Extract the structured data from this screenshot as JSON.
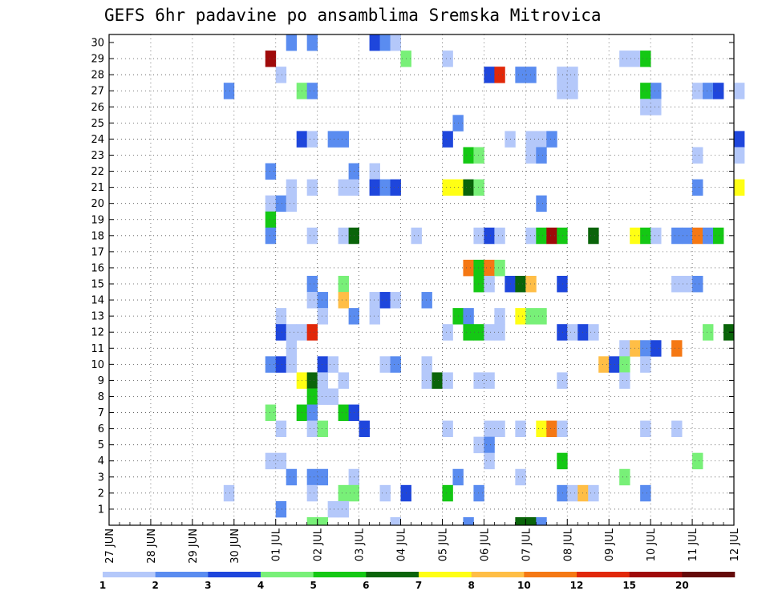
{
  "chart_data": {
    "type": "heatmap",
    "title": "GEFS 6hr padavine po ansamblima Sremska Mitrovica",
    "x_tick_labels": [
      "27 JUN",
      "28 JUN",
      "29 JUN",
      "30 JUN",
      "01 JUL",
      "02 JUL",
      "03 JUL",
      "04 JUL",
      "05 JUL",
      "06 JUL",
      "07 JUL",
      "08 JUL",
      "09 JUL",
      "10 JUL",
      "11 JUL",
      "12 JUL"
    ],
    "y_tick_labels": [
      "1",
      "2",
      "3",
      "4",
      "5",
      "6",
      "7",
      "8",
      "9",
      "10",
      "11",
      "12",
      "13",
      "14",
      "15",
      "16",
      "17",
      "18",
      "19",
      "20",
      "21",
      "22",
      "23",
      "24",
      "25",
      "26",
      "27",
      "28",
      "29",
      "30"
    ],
    "x_units": "6-hour steps from 27 JUN 00Z",
    "ylim": [
      0,
      30
    ],
    "grid": true,
    "legend": {
      "placement": "bottom",
      "labels": [
        "1",
        "2",
        "3",
        "4",
        "5",
        "6",
        "7",
        "8",
        "10",
        "12",
        "15",
        "20"
      ],
      "colors": [
        "#b4c8fa",
        "#5a8cf0",
        "#1e46dc",
        "#78f078",
        "#14c814",
        "#0a640a",
        "#ffff14",
        "#ffbe46",
        "#f57814",
        "#e1280a",
        "#a00a0a",
        "#640a0a"
      ]
    },
    "cells": [
      {
        "m": 30,
        "t": [
          [
            17,
            2
          ],
          [
            19,
            2
          ],
          [
            25,
            3
          ],
          [
            26,
            2
          ],
          [
            27,
            1
          ]
        ]
      },
      {
        "m": 29,
        "t": [
          [
            15,
            11
          ],
          [
            28,
            4
          ],
          [
            32,
            1
          ],
          [
            49,
            1
          ],
          [
            50,
            1
          ],
          [
            51,
            5
          ]
        ]
      },
      {
        "m": 28,
        "t": [
          [
            16,
            1
          ],
          [
            36,
            3
          ],
          [
            37,
            10
          ],
          [
            39,
            2
          ],
          [
            40,
            2
          ],
          [
            43,
            1
          ],
          [
            44,
            1
          ]
        ]
      },
      {
        "m": 27,
        "t": [
          [
            11,
            2
          ],
          [
            18,
            4
          ],
          [
            19,
            2
          ],
          [
            43,
            1
          ],
          [
            44,
            1
          ],
          [
            51,
            5
          ],
          [
            52,
            2
          ],
          [
            56,
            1
          ],
          [
            57,
            2
          ],
          [
            58,
            3
          ],
          [
            60,
            1
          ]
        ]
      },
      {
        "m": 26,
        "t": [
          [
            51,
            1
          ],
          [
            52,
            1
          ]
        ]
      },
      {
        "m": 25,
        "t": [
          [
            33,
            2
          ]
        ]
      },
      {
        "m": 24,
        "t": [
          [
            18,
            3
          ],
          [
            19,
            1
          ],
          [
            21,
            2
          ],
          [
            22,
            2
          ],
          [
            32,
            3
          ],
          [
            38,
            1
          ],
          [
            40,
            1
          ],
          [
            41,
            1
          ],
          [
            42,
            2
          ],
          [
            60,
            3
          ]
        ]
      },
      {
        "m": 23,
        "t": [
          [
            34,
            5
          ],
          [
            35,
            4
          ],
          [
            40,
            1
          ],
          [
            41,
            2
          ],
          [
            56,
            1
          ],
          [
            60,
            1
          ]
        ]
      },
      {
        "m": 22,
        "t": [
          [
            15,
            2
          ],
          [
            23,
            2
          ],
          [
            25,
            1
          ]
        ]
      },
      {
        "m": 21,
        "t": [
          [
            17,
            1
          ],
          [
            19,
            1
          ],
          [
            22,
            1
          ],
          [
            23,
            1
          ],
          [
            25,
            3
          ],
          [
            26,
            2
          ],
          [
            27,
            3
          ],
          [
            32,
            7
          ],
          [
            33,
            7
          ],
          [
            34,
            6
          ],
          [
            35,
            4
          ],
          [
            56,
            2
          ],
          [
            60,
            7
          ]
        ]
      },
      {
        "m": 20,
        "t": [
          [
            15,
            1
          ],
          [
            16,
            2
          ],
          [
            17,
            1
          ],
          [
            41,
            2
          ]
        ]
      },
      {
        "m": 19,
        "t": [
          [
            15,
            5
          ]
        ]
      },
      {
        "m": 18,
        "t": [
          [
            15,
            2
          ],
          [
            19,
            1
          ],
          [
            22,
            1
          ],
          [
            23,
            6
          ],
          [
            29,
            1
          ],
          [
            35,
            1
          ],
          [
            36,
            3
          ],
          [
            37,
            1
          ],
          [
            40,
            1
          ],
          [
            41,
            5
          ],
          [
            42,
            11
          ],
          [
            43,
            5
          ],
          [
            46,
            6
          ],
          [
            50,
            7
          ],
          [
            51,
            5
          ],
          [
            52,
            1
          ],
          [
            54,
            2
          ],
          [
            55,
            2
          ],
          [
            56,
            9
          ],
          [
            57,
            2
          ],
          [
            58,
            5
          ]
        ]
      },
      {
        "m": 16,
        "t": [
          [
            34,
            9
          ],
          [
            35,
            5
          ],
          [
            36,
            9
          ],
          [
            37,
            4
          ]
        ]
      },
      {
        "m": 15,
        "t": [
          [
            19,
            2
          ],
          [
            22,
            4
          ],
          [
            35,
            5
          ],
          [
            36,
            1
          ],
          [
            38,
            3
          ],
          [
            39,
            6
          ],
          [
            40,
            8
          ],
          [
            43,
            3
          ],
          [
            54,
            1
          ],
          [
            55,
            1
          ],
          [
            56,
            2
          ]
        ]
      },
      {
        "m": 14,
        "t": [
          [
            19,
            1
          ],
          [
            20,
            2
          ],
          [
            22,
            8
          ],
          [
            25,
            1
          ],
          [
            26,
            3
          ],
          [
            27,
            1
          ],
          [
            30,
            2
          ]
        ]
      },
      {
        "m": 13,
        "t": [
          [
            16,
            1
          ],
          [
            20,
            1
          ],
          [
            23,
            2
          ],
          [
            25,
            1
          ],
          [
            33,
            5
          ],
          [
            34,
            2
          ],
          [
            37,
            1
          ],
          [
            39,
            7
          ],
          [
            40,
            4
          ],
          [
            41,
            4
          ]
        ]
      },
      {
        "m": 12,
        "t": [
          [
            16,
            3
          ],
          [
            17,
            1
          ],
          [
            18,
            1
          ],
          [
            19,
            10
          ],
          [
            32,
            1
          ],
          [
            34,
            5
          ],
          [
            35,
            5
          ],
          [
            36,
            1
          ],
          [
            37,
            1
          ],
          [
            43,
            3
          ],
          [
            44,
            1
          ],
          [
            45,
            3
          ],
          [
            46,
            1
          ],
          [
            57,
            4
          ],
          [
            59,
            6
          ]
        ]
      },
      {
        "m": 11,
        "t": [
          [
            17,
            1
          ],
          [
            49,
            1
          ],
          [
            50,
            8
          ],
          [
            51,
            2
          ],
          [
            52,
            3
          ],
          [
            54,
            9
          ]
        ]
      },
      {
        "m": 10,
        "t": [
          [
            15,
            2
          ],
          [
            16,
            3
          ],
          [
            17,
            1
          ],
          [
            20,
            3
          ],
          [
            21,
            1
          ],
          [
            26,
            1
          ],
          [
            27,
            2
          ],
          [
            30,
            1
          ],
          [
            47,
            8
          ],
          [
            48,
            3
          ],
          [
            49,
            4
          ],
          [
            51,
            1
          ]
        ]
      },
      {
        "m": 9,
        "t": [
          [
            18,
            7
          ],
          [
            19,
            6
          ],
          [
            20,
            1
          ],
          [
            22,
            1
          ],
          [
            30,
            1
          ],
          [
            31,
            6
          ],
          [
            32,
            1
          ],
          [
            35,
            1
          ],
          [
            36,
            1
          ],
          [
            43,
            1
          ],
          [
            49,
            1
          ]
        ]
      },
      {
        "m": 8,
        "t": [
          [
            19,
            5
          ],
          [
            20,
            1
          ],
          [
            21,
            1
          ]
        ]
      },
      {
        "m": 7,
        "t": [
          [
            15,
            4
          ],
          [
            18,
            5
          ],
          [
            19,
            2
          ],
          [
            22,
            5
          ],
          [
            23,
            3
          ]
        ]
      },
      {
        "m": 6,
        "t": [
          [
            16,
            1
          ],
          [
            19,
            1
          ],
          [
            20,
            4
          ],
          [
            24,
            3
          ],
          [
            32,
            1
          ],
          [
            36,
            1
          ],
          [
            37,
            1
          ],
          [
            39,
            1
          ],
          [
            41,
            7
          ],
          [
            42,
            9
          ],
          [
            43,
            1
          ],
          [
            51,
            1
          ],
          [
            54,
            1
          ]
        ]
      },
      {
        "m": 5,
        "t": [
          [
            35,
            1
          ],
          [
            36,
            2
          ]
        ]
      },
      {
        "m": 4,
        "t": [
          [
            15,
            1
          ],
          [
            16,
            1
          ],
          [
            36,
            1
          ],
          [
            43,
            5
          ],
          [
            56,
            4
          ]
        ]
      },
      {
        "m": 3,
        "t": [
          [
            17,
            2
          ],
          [
            19,
            2
          ],
          [
            20,
            2
          ],
          [
            23,
            1
          ],
          [
            33,
            2
          ],
          [
            39,
            1
          ],
          [
            49,
            4
          ]
        ]
      },
      {
        "m": 2,
        "t": [
          [
            11,
            1
          ],
          [
            19,
            1
          ],
          [
            22,
            4
          ],
          [
            23,
            4
          ],
          [
            26,
            1
          ],
          [
            28,
            3
          ],
          [
            32,
            5
          ],
          [
            35,
            2
          ],
          [
            43,
            2
          ],
          [
            44,
            1
          ],
          [
            45,
            8
          ],
          [
            46,
            1
          ],
          [
            51,
            2
          ]
        ]
      },
      {
        "m": 1,
        "t": [
          [
            16,
            2
          ],
          [
            21,
            1
          ],
          [
            22,
            1
          ]
        ]
      },
      {
        "m": 0,
        "t": [
          [
            19,
            4
          ],
          [
            20,
            4
          ],
          [
            27,
            1
          ],
          [
            34,
            2
          ],
          [
            39,
            6
          ],
          [
            40,
            6
          ],
          [
            41,
            2
          ]
        ]
      }
    ]
  }
}
